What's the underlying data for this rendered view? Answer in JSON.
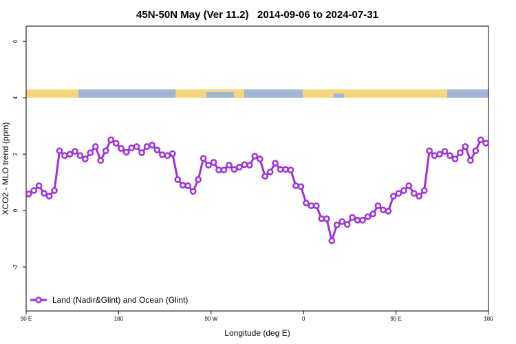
{
  "chart_data": {
    "type": "line",
    "title": "45N-50N May (Ver 11.2)   2014-09-06 to 2024-07-31",
    "xlabel": "Longitude (deg E)",
    "ylabel": "XCO2 - MLO trend (ppm)",
    "xlim": [
      90,
      540
    ],
    "xticks": [
      {
        "value": 90,
        "label": "90 E"
      },
      {
        "value": 180,
        "label": "180"
      },
      {
        "value": 270,
        "label": "90 W"
      },
      {
        "value": 360,
        "label": "0"
      },
      {
        "value": 450,
        "label": "90 E"
      },
      {
        "value": 540,
        "label": "180"
      }
    ],
    "ylim": [
      -3.56,
      6.54
    ],
    "yticks": [
      6,
      4,
      2,
      0,
      -2
    ],
    "legend": "lower left",
    "x": [
      92.5,
      97.5,
      102.5,
      107.5,
      112.5,
      117.5,
      122.5,
      127.5,
      132.5,
      137.5,
      142.5,
      147.5,
      152.5,
      157.5,
      162.5,
      167.5,
      172.5,
      177.5,
      182.5,
      187.5,
      192.5,
      197.5,
      202.5,
      207.5,
      212.5,
      217.5,
      222.5,
      227.5,
      232.5,
      237.5,
      242.5,
      247.5,
      252.5,
      257.5,
      262.5,
      267.5,
      272.5,
      277.5,
      282.5,
      287.5,
      292.5,
      297.5,
      302.5,
      307.5,
      312.5,
      317.5,
      322.5,
      327.5,
      332.5,
      337.5,
      342.5,
      347.5,
      352.5,
      357.5,
      362.5,
      367.5,
      372.5,
      377.5,
      382.5,
      387.5,
      392.5,
      397.5,
      402.5,
      407.5,
      412.5,
      417.5,
      422.5,
      427.5,
      432.5,
      437.5,
      442.5,
      447.5,
      452.5,
      457.5,
      462.5,
      467.5,
      472.5,
      477.5,
      482.5,
      487.5,
      492.5,
      497.5,
      502.5,
      507.5,
      512.5,
      517.5,
      522.5,
      527.5,
      532.5,
      537.5
    ],
    "series": [
      {
        "name": "Land (Nadir&Glint) and Ocean (Glint)",
        "color": "#9b30e0",
        "values": [
          0.59,
          0.71,
          0.88,
          0.61,
          0.51,
          0.71,
          2.12,
          1.95,
          2.0,
          2.1,
          1.95,
          1.83,
          2.05,
          2.27,
          1.78,
          2.12,
          2.51,
          2.39,
          2.2,
          2.07,
          2.22,
          2.27,
          2.05,
          2.27,
          2.32,
          2.15,
          1.98,
          1.95,
          2.02,
          1.1,
          0.9,
          0.88,
          0.68,
          1.1,
          1.85,
          1.61,
          1.71,
          1.44,
          1.44,
          1.61,
          1.46,
          1.54,
          1.63,
          1.61,
          1.93,
          1.83,
          1.22,
          1.37,
          1.68,
          1.46,
          1.46,
          1.44,
          0.88,
          0.85,
          0.27,
          0.17,
          0.17,
          -0.29,
          -0.29,
          -1.07,
          -0.51,
          -0.39,
          -0.49,
          -0.24,
          -0.34,
          -0.34,
          -0.22,
          -0.12,
          0.17,
          0.02,
          -0.02,
          0.51,
          0.61,
          0.71,
          0.88,
          0.61,
          0.51,
          0.71,
          2.12,
          1.95,
          2.0,
          2.1,
          1.95,
          1.83,
          2.05,
          2.27,
          1.78,
          2.12,
          2.51,
          2.39
        ]
      }
    ]
  }
}
